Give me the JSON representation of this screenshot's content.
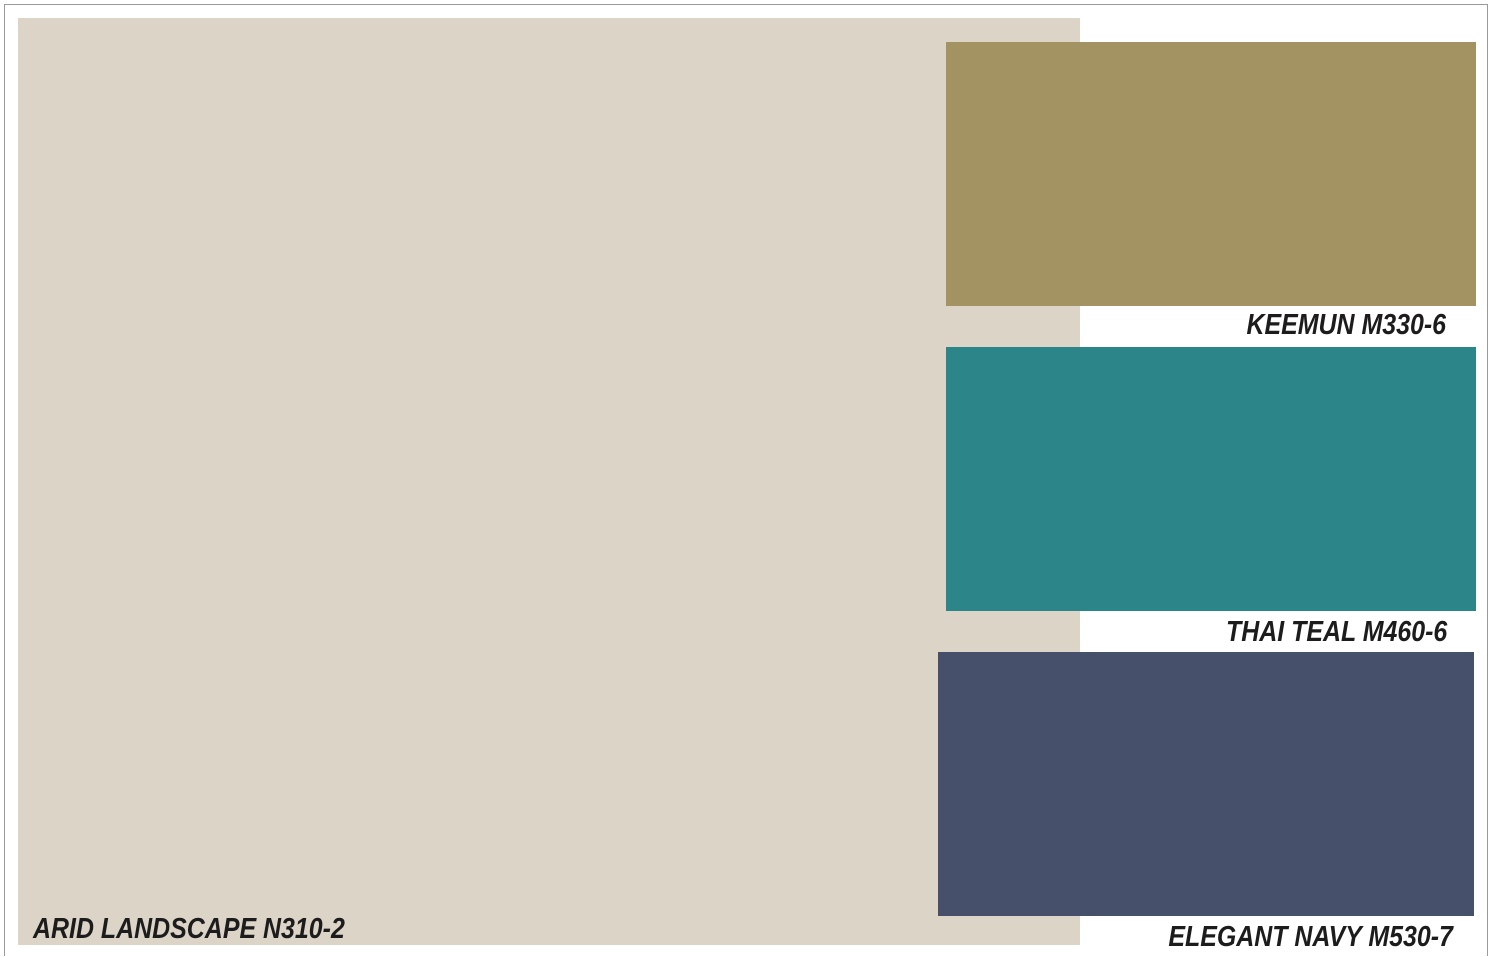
{
  "palette": {
    "main": {
      "name": "ARID LANDSCAPE N310-2",
      "color": "#dcd4c7"
    },
    "accents": [
      {
        "name": "KEEMUN M330-6",
        "color": "#a39362"
      },
      {
        "name": "THAI TEAL M460-6",
        "color": "#2c8689"
      },
      {
        "name": "ELEGANT NAVY M530-7",
        "color": "#46506b"
      }
    ]
  }
}
